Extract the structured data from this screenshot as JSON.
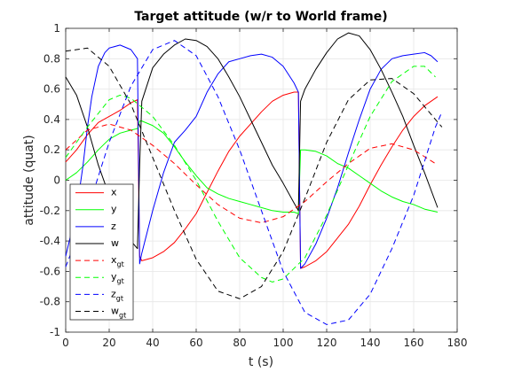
{
  "chart_data": {
    "type": "line",
    "title": "Target attitude (w/r to World frame)",
    "xlabel": "t (s)",
    "ylabel": "attitude (quat)",
    "xlim": [
      0,
      180
    ],
    "ylim": [
      -1,
      1
    ],
    "xticks": [
      0,
      20,
      40,
      60,
      80,
      100,
      120,
      140,
      160,
      180
    ],
    "yticks": [
      -1,
      -0.8,
      -0.6,
      -0.4,
      -0.2,
      0,
      0.2,
      0.4,
      0.6,
      0.8,
      1
    ],
    "xtick_labels": [
      "0",
      "20",
      "40",
      "60",
      "80",
      "100",
      "120",
      "140",
      "160",
      "180"
    ],
    "ytick_labels": [
      "-1",
      "-0.8",
      "-0.6",
      "-0.4",
      "-0.2",
      "0",
      "0.2",
      "0.4",
      "0.6",
      "0.8",
      "1"
    ],
    "grid": true,
    "legend_position": "bottom-left",
    "series": [
      {
        "name": "x",
        "color": "#ff0000",
        "dash": "solid",
        "points": [
          [
            0,
            0.12
          ],
          [
            5,
            0.2
          ],
          [
            10,
            0.3
          ],
          [
            15,
            0.38
          ],
          [
            20,
            0.42
          ],
          [
            25,
            0.46
          ],
          [
            30,
            0.51
          ],
          [
            33,
            0.53
          ],
          [
            34,
            -0.5
          ],
          [
            35,
            -0.53
          ],
          [
            40,
            -0.51
          ],
          [
            45,
            -0.47
          ],
          [
            50,
            -0.41
          ],
          [
            55,
            -0.32
          ],
          [
            60,
            -0.22
          ],
          [
            65,
            -0.08
          ],
          [
            70,
            0.06
          ],
          [
            75,
            0.19
          ],
          [
            80,
            0.29
          ],
          [
            85,
            0.37
          ],
          [
            90,
            0.45
          ],
          [
            95,
            0.52
          ],
          [
            100,
            0.56
          ],
          [
            105,
            0.58
          ],
          [
            107,
            0.58
          ],
          [
            108,
            -0.58
          ],
          [
            110,
            -0.57
          ],
          [
            115,
            -0.53
          ],
          [
            120,
            -0.47
          ],
          [
            125,
            -0.38
          ],
          [
            130,
            -0.29
          ],
          [
            135,
            -0.17
          ],
          [
            140,
            -0.03
          ],
          [
            145,
            0.1
          ],
          [
            150,
            0.22
          ],
          [
            155,
            0.33
          ],
          [
            160,
            0.42
          ],
          [
            165,
            0.49
          ],
          [
            168,
            0.52
          ],
          [
            171,
            0.55
          ]
        ]
      },
      {
        "name": "y",
        "color": "#00ff00",
        "dash": "solid",
        "points": [
          [
            0,
            0.0
          ],
          [
            5,
            0.05
          ],
          [
            10,
            0.12
          ],
          [
            15,
            0.2
          ],
          [
            20,
            0.27
          ],
          [
            25,
            0.31
          ],
          [
            30,
            0.33
          ],
          [
            33,
            0.34
          ],
          [
            34,
            0.39
          ],
          [
            35,
            0.39
          ],
          [
            40,
            0.36
          ],
          [
            45,
            0.31
          ],
          [
            50,
            0.22
          ],
          [
            55,
            0.12
          ],
          [
            60,
            0.03
          ],
          [
            65,
            -0.05
          ],
          [
            70,
            -0.09
          ],
          [
            75,
            -0.12
          ],
          [
            80,
            -0.14
          ],
          [
            85,
            -0.16
          ],
          [
            90,
            -0.18
          ],
          [
            95,
            -0.2
          ],
          [
            100,
            -0.21
          ],
          [
            105,
            -0.21
          ],
          [
            107,
            -0.22
          ],
          [
            108,
            0.2
          ],
          [
            110,
            0.2
          ],
          [
            115,
            0.19
          ],
          [
            120,
            0.16
          ],
          [
            125,
            0.11
          ],
          [
            130,
            0.08
          ],
          [
            135,
            0.03
          ],
          [
            140,
            -0.02
          ],
          [
            145,
            -0.07
          ],
          [
            150,
            -0.11
          ],
          [
            155,
            -0.14
          ],
          [
            160,
            -0.16
          ],
          [
            165,
            -0.19
          ],
          [
            171,
            -0.21
          ]
        ]
      },
      {
        "name": "z",
        "color": "#0000ff",
        "dash": "solid",
        "points": [
          [
            0,
            -0.5
          ],
          [
            2,
            -0.38
          ],
          [
            5,
            -0.2
          ],
          [
            8,
            0.1
          ],
          [
            10,
            0.35
          ],
          [
            12,
            0.55
          ],
          [
            15,
            0.75
          ],
          [
            18,
            0.84
          ],
          [
            20,
            0.87
          ],
          [
            25,
            0.89
          ],
          [
            30,
            0.86
          ],
          [
            33,
            0.8
          ],
          [
            34,
            -0.55
          ],
          [
            35,
            -0.48
          ],
          [
            40,
            -0.2
          ],
          [
            45,
            0.05
          ],
          [
            50,
            0.25
          ],
          [
            55,
            0.33
          ],
          [
            60,
            0.42
          ],
          [
            65,
            0.58
          ],
          [
            70,
            0.7
          ],
          [
            75,
            0.78
          ],
          [
            80,
            0.8
          ],
          [
            85,
            0.82
          ],
          [
            90,
            0.83
          ],
          [
            95,
            0.81
          ],
          [
            100,
            0.75
          ],
          [
            105,
            0.64
          ],
          [
            107,
            0.58
          ],
          [
            108,
            -0.58
          ],
          [
            110,
            -0.55
          ],
          [
            115,
            -0.42
          ],
          [
            120,
            -0.25
          ],
          [
            125,
            -0.05
          ],
          [
            130,
            0.18
          ],
          [
            135,
            0.4
          ],
          [
            140,
            0.6
          ],
          [
            145,
            0.73
          ],
          [
            150,
            0.8
          ],
          [
            155,
            0.82
          ],
          [
            160,
            0.83
          ],
          [
            165,
            0.84
          ],
          [
            168,
            0.82
          ],
          [
            171,
            0.78
          ]
        ]
      },
      {
        "name": "w",
        "color": "#000000",
        "dash": "solid",
        "points": [
          [
            0,
            0.68
          ],
          [
            5,
            0.56
          ],
          [
            10,
            0.35
          ],
          [
            15,
            0.1
          ],
          [
            20,
            -0.1
          ],
          [
            25,
            -0.28
          ],
          [
            30,
            -0.4
          ],
          [
            33,
            -0.45
          ],
          [
            34,
            0.1
          ],
          [
            35,
            0.52
          ],
          [
            40,
            0.74
          ],
          [
            45,
            0.83
          ],
          [
            50,
            0.89
          ],
          [
            55,
            0.93
          ],
          [
            60,
            0.92
          ],
          [
            65,
            0.88
          ],
          [
            70,
            0.8
          ],
          [
            75,
            0.68
          ],
          [
            80,
            0.55
          ],
          [
            85,
            0.4
          ],
          [
            90,
            0.25
          ],
          [
            95,
            0.1
          ],
          [
            100,
            -0.02
          ],
          [
            105,
            -0.15
          ],
          [
            107,
            -0.2
          ],
          [
            108,
            0.52
          ],
          [
            110,
            0.6
          ],
          [
            115,
            0.73
          ],
          [
            120,
            0.84
          ],
          [
            125,
            0.93
          ],
          [
            130,
            0.97
          ],
          [
            135,
            0.95
          ],
          [
            140,
            0.86
          ],
          [
            145,
            0.73
          ],
          [
            150,
            0.58
          ],
          [
            155,
            0.42
          ],
          [
            160,
            0.23
          ],
          [
            165,
            0.05
          ],
          [
            171,
            -0.18
          ]
        ]
      },
      {
        "name": "x_gt",
        "color": "#ff0000",
        "dash": "dashed",
        "points": [
          [
            0,
            0.2
          ],
          [
            10,
            0.33
          ],
          [
            20,
            0.37
          ],
          [
            30,
            0.33
          ],
          [
            40,
            0.23
          ],
          [
            50,
            0.11
          ],
          [
            60,
            -0.03
          ],
          [
            70,
            -0.16
          ],
          [
            80,
            -0.25
          ],
          [
            90,
            -0.28
          ],
          [
            100,
            -0.24
          ],
          [
            110,
            -0.14
          ],
          [
            120,
            -0.01
          ],
          [
            130,
            0.11
          ],
          [
            140,
            0.21
          ],
          [
            150,
            0.24
          ],
          [
            160,
            0.2
          ],
          [
            170,
            0.11
          ]
        ]
      },
      {
        "name": "y_gt",
        "color": "#00ff00",
        "dash": "dashed",
        "points": [
          [
            0,
            0.15
          ],
          [
            10,
            0.35
          ],
          [
            20,
            0.53
          ],
          [
            25,
            0.56
          ],
          [
            30,
            0.54
          ],
          [
            40,
            0.42
          ],
          [
            50,
            0.23
          ],
          [
            60,
            0.0
          ],
          [
            70,
            -0.27
          ],
          [
            80,
            -0.51
          ],
          [
            90,
            -0.64
          ],
          [
            95,
            -0.67
          ],
          [
            100,
            -0.65
          ],
          [
            110,
            -0.51
          ],
          [
            120,
            -0.23
          ],
          [
            130,
            0.1
          ],
          [
            140,
            0.42
          ],
          [
            150,
            0.65
          ],
          [
            160,
            0.75
          ],
          [
            165,
            0.75
          ],
          [
            170,
            0.68
          ]
        ]
      },
      {
        "name": "z_gt",
        "color": "#0000ff",
        "dash": "dashed",
        "points": [
          [
            0,
            -0.57
          ],
          [
            10,
            -0.2
          ],
          [
            20,
            0.25
          ],
          [
            30,
            0.62
          ],
          [
            40,
            0.86
          ],
          [
            50,
            0.92
          ],
          [
            60,
            0.82
          ],
          [
            70,
            0.55
          ],
          [
            80,
            0.2
          ],
          [
            90,
            -0.2
          ],
          [
            100,
            -0.6
          ],
          [
            110,
            -0.87
          ],
          [
            120,
            -0.95
          ],
          [
            130,
            -0.92
          ],
          [
            140,
            -0.75
          ],
          [
            150,
            -0.45
          ],
          [
            160,
            -0.1
          ],
          [
            170,
            0.35
          ],
          [
            173,
            0.45
          ]
        ]
      },
      {
        "name": "w_gt",
        "color": "#000000",
        "dash": "dashed",
        "points": [
          [
            0,
            0.85
          ],
          [
            10,
            0.87
          ],
          [
            20,
            0.75
          ],
          [
            30,
            0.5
          ],
          [
            40,
            0.15
          ],
          [
            50,
            -0.2
          ],
          [
            60,
            -0.52
          ],
          [
            70,
            -0.73
          ],
          [
            80,
            -0.78
          ],
          [
            90,
            -0.7
          ],
          [
            100,
            -0.47
          ],
          [
            110,
            -0.12
          ],
          [
            120,
            0.25
          ],
          [
            130,
            0.53
          ],
          [
            140,
            0.66
          ],
          [
            150,
            0.67
          ],
          [
            160,
            0.57
          ],
          [
            170,
            0.4
          ],
          [
            173,
            0.35
          ]
        ]
      }
    ],
    "legend": [
      {
        "label": "x",
        "sub": ""
      },
      {
        "label": "y",
        "sub": ""
      },
      {
        "label": "z",
        "sub": ""
      },
      {
        "label": "w",
        "sub": ""
      },
      {
        "label": "x",
        "sub": "gt"
      },
      {
        "label": "y",
        "sub": "gt"
      },
      {
        "label": "z",
        "sub": "gt"
      },
      {
        "label": "w",
        "sub": "gt"
      }
    ]
  }
}
